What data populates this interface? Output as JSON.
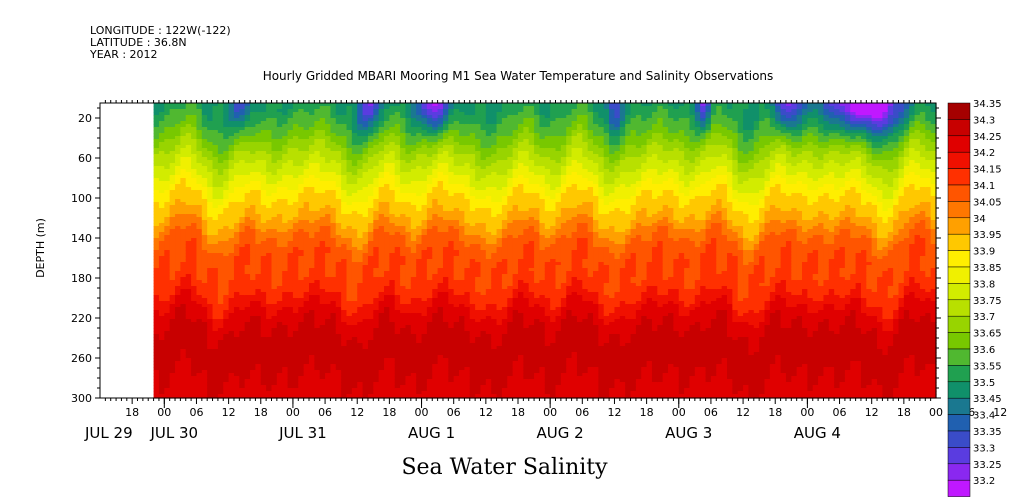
{
  "header": {
    "longitude": "LONGITUDE : 122W(-122)",
    "latitude": "LATITUDE : 36.8N",
    "year": "YEAR : 2012"
  },
  "footer_label": "Sea Water Salinity",
  "chart_data": {
    "type": "heatmap",
    "title": "Hourly Gridded MBARI Mooring M1 Sea Water Temperature and Salinity Observations",
    "xlabel": "",
    "ylabel": "DEPTH (m)",
    "ylim": [
      300,
      0
    ],
    "y_ticks": [
      20,
      60,
      100,
      140,
      180,
      220,
      260,
      300
    ],
    "x_hour_ticks": [
      "18",
      "00",
      "06",
      "12",
      "18",
      "00",
      "06",
      "12",
      "18",
      "00",
      "06",
      "12",
      "18",
      "00",
      "06",
      "12",
      "18",
      "00",
      "06",
      "12",
      "18",
      "00",
      "06",
      "12",
      "18",
      "00",
      "06",
      "12",
      "18"
    ],
    "x_day_labels": [
      "JUL 29",
      "JUL 30",
      "JUL 31",
      "AUG  1",
      "AUG  2",
      "AUG  3",
      "AUG  4"
    ],
    "xlim": [
      "2012-07-29 12:00",
      "2012-08-05 00:00"
    ],
    "data_start": "2012-07-29 22:00",
    "colorbar": {
      "levels": [
        "34.35",
        "34.3",
        "34.25",
        "34.2",
        "34.15",
        "34.1",
        "34.05",
        "34",
        "33.95",
        "33.9",
        "33.85",
        "33.8",
        "33.75",
        "33.7",
        "33.65",
        "33.6",
        "33.55",
        "33.5",
        "33.45",
        "33.4",
        "33.35",
        "33.3",
        "33.25",
        "33.2"
      ],
      "colors": [
        "#a50000",
        "#c80000",
        "#e00000",
        "#f01000",
        "#ff3000",
        "#ff5500",
        "#ff7700",
        "#ffa000",
        "#ffc800",
        "#ffee00",
        "#f0f000",
        "#d2ec00",
        "#b8e000",
        "#98d400",
        "#78c800",
        "#50b830",
        "#20a050",
        "#10906a",
        "#1a7890",
        "#2060b0",
        "#3a4cc8",
        "#5a3ce0",
        "#8a28f0",
        "#c018ff"
      ]
    },
    "profile": {
      "depth": [
        10,
        20,
        35,
        55,
        80,
        100,
        120,
        140,
        160,
        180,
        200,
        210,
        220,
        240,
        260,
        280,
        300
      ],
      "salinity": [
        33.55,
        33.6,
        33.65,
        33.75,
        33.85,
        33.95,
        34.0,
        34.1,
        34.15,
        34.15,
        34.2,
        34.25,
        34.28,
        34.32,
        34.33,
        34.3,
        34.27
      ]
    },
    "surface_fresh_events": [
      {
        "day": 1.6,
        "width": 0.08,
        "strength": 0.2
      },
      {
        "day": 2.6,
        "width": 0.1,
        "strength": 0.25
      },
      {
        "day": 3.1,
        "width": 0.12,
        "strength": 0.35
      },
      {
        "day": 4.5,
        "width": 0.06,
        "strength": 0.2
      },
      {
        "day": 5.2,
        "width": 0.06,
        "strength": 0.25
      },
      {
        "day": 5.85,
        "width": 0.1,
        "strength": 0.3
      },
      {
        "day": 6.45,
        "width": 0.3,
        "strength": 0.4
      }
    ]
  }
}
